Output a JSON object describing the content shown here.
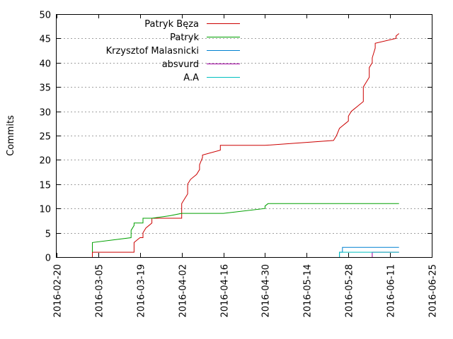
{
  "chart_data": {
    "type": "line",
    "title": "",
    "xlabel": "",
    "ylabel": "Commits",
    "ylim": [
      0,
      50
    ],
    "xlim": [
      "2016-02-20",
      "2016-06-25"
    ],
    "grid": true,
    "legend_position": "top-left",
    "y_ticks": [
      0,
      5,
      10,
      15,
      20,
      25,
      30,
      35,
      40,
      45,
      50
    ],
    "x_ticks": [
      "2016-02-20",
      "2016-03-05",
      "2016-03-19",
      "2016-04-02",
      "2016-04-16",
      "2016-04-30",
      "2016-05-14",
      "2016-05-28",
      "2016-06-11",
      "2016-06-25"
    ],
    "series": [
      {
        "name": "Patryk Bęza",
        "color": "#cc0000",
        "points": [
          [
            "2016-03-03",
            0
          ],
          [
            "2016-03-03",
            1
          ],
          [
            "2016-03-17",
            1
          ],
          [
            "2016-03-17",
            3
          ],
          [
            "2016-03-18",
            3.5
          ],
          [
            "2016-03-19",
            4
          ],
          [
            "2016-03-20",
            4
          ],
          [
            "2016-03-20",
            5
          ],
          [
            "2016-03-21",
            6
          ],
          [
            "2016-03-22",
            6.5
          ],
          [
            "2016-03-23",
            7
          ],
          [
            "2016-03-23",
            8
          ],
          [
            "2016-04-02",
            8
          ],
          [
            "2016-04-02",
            11
          ],
          [
            "2016-04-03",
            12
          ],
          [
            "2016-04-04",
            13
          ],
          [
            "2016-04-04",
            15
          ],
          [
            "2016-04-05",
            16
          ],
          [
            "2016-04-07",
            17
          ],
          [
            "2016-04-08",
            18
          ],
          [
            "2016-04-08",
            19
          ],
          [
            "2016-04-09",
            20.5
          ],
          [
            "2016-04-09",
            21
          ],
          [
            "2016-04-15",
            22
          ],
          [
            "2016-04-15",
            23
          ],
          [
            "2016-04-30",
            23
          ],
          [
            "2016-05-23",
            24
          ],
          [
            "2016-05-24",
            25
          ],
          [
            "2016-05-25",
            26.5
          ],
          [
            "2016-05-26",
            27
          ],
          [
            "2016-05-27",
            27.5
          ],
          [
            "2016-05-28",
            28
          ],
          [
            "2016-05-28",
            29
          ],
          [
            "2016-05-29",
            30
          ],
          [
            "2016-05-30",
            30.5
          ],
          [
            "2016-05-31",
            31
          ],
          [
            "2016-06-02",
            32
          ],
          [
            "2016-06-02",
            35
          ],
          [
            "2016-06-03",
            36
          ],
          [
            "2016-06-04",
            37
          ],
          [
            "2016-06-04",
            39
          ],
          [
            "2016-06-05",
            40
          ],
          [
            "2016-06-05",
            41
          ],
          [
            "2016-06-06",
            43
          ],
          [
            "2016-06-06",
            44
          ],
          [
            "2016-06-13",
            45
          ],
          [
            "2016-06-13",
            45.5
          ],
          [
            "2016-06-14",
            46
          ]
        ]
      },
      {
        "name": "Patryk",
        "color": "#00a000",
        "points": [
          [
            "2016-03-03",
            1
          ],
          [
            "2016-03-03",
            3
          ],
          [
            "2016-03-16",
            4
          ],
          [
            "2016-03-16",
            5.5
          ],
          [
            "2016-03-17",
            6.5
          ],
          [
            "2016-03-17",
            7
          ],
          [
            "2016-03-20",
            7
          ],
          [
            "2016-03-20",
            8
          ],
          [
            "2016-03-23",
            8
          ],
          [
            "2016-03-29",
            8.5
          ],
          [
            "2016-04-02",
            9
          ],
          [
            "2016-04-16",
            9
          ],
          [
            "2016-04-30",
            10
          ],
          [
            "2016-04-30",
            10.5
          ],
          [
            "2016-05-01",
            11
          ],
          [
            "2016-06-14",
            11
          ]
        ]
      },
      {
        "name": "Krzysztof Malasnicki",
        "color": "#0080d0",
        "points": [
          [
            "2016-05-25",
            0
          ],
          [
            "2016-05-25",
            1
          ],
          [
            "2016-05-26",
            1
          ],
          [
            "2016-05-26",
            2
          ],
          [
            "2016-06-14",
            2
          ]
        ]
      },
      {
        "name": "absvurd",
        "color": "#a000a0",
        "points": [
          [
            "2016-06-05",
            0
          ],
          [
            "2016-06-05",
            1
          ],
          [
            "2016-06-14",
            1
          ]
        ]
      },
      {
        "name": "A.A",
        "color": "#00c0c0",
        "points": [
          [
            "2016-05-25",
            0
          ],
          [
            "2016-05-25",
            1
          ],
          [
            "2016-06-14",
            1
          ]
        ]
      }
    ]
  }
}
